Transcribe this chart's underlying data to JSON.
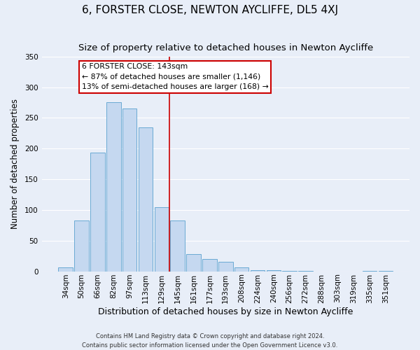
{
  "title": "6, FORSTER CLOSE, NEWTON AYCLIFFE, DL5 4XJ",
  "subtitle": "Size of property relative to detached houses in Newton Aycliffe",
  "xlabel": "Distribution of detached houses by size in Newton Aycliffe",
  "ylabel": "Number of detached properties",
  "bar_labels": [
    "34sqm",
    "50sqm",
    "66sqm",
    "82sqm",
    "97sqm",
    "113sqm",
    "129sqm",
    "145sqm",
    "161sqm",
    "177sqm",
    "193sqm",
    "208sqm",
    "224sqm",
    "240sqm",
    "256sqm",
    "272sqm",
    "288sqm",
    "303sqm",
    "319sqm",
    "335sqm",
    "351sqm"
  ],
  "bar_values": [
    6,
    83,
    194,
    276,
    265,
    235,
    105,
    83,
    28,
    20,
    16,
    6,
    2,
    2,
    1,
    1,
    0,
    0,
    0,
    1,
    1
  ],
  "bar_color": "#c5d8f0",
  "bar_edge_color": "#6aaad4",
  "vline_color": "#cc0000",
  "annotation_title": "6 FORSTER CLOSE: 143sqm",
  "annotation_line1": "← 87% of detached houses are smaller (1,146)",
  "annotation_line2": "13% of semi-detached houses are larger (168) →",
  "annotation_box_color": "#ffffff",
  "annotation_box_edge": "#cc0000",
  "ylim": [
    0,
    350
  ],
  "yticks": [
    0,
    50,
    100,
    150,
    200,
    250,
    300,
    350
  ],
  "footer1": "Contains HM Land Registry data © Crown copyright and database right 2024.",
  "footer2": "Contains public sector information licensed under the Open Government Licence v3.0.",
  "bg_color": "#e8eef8",
  "grid_color": "#ffffff",
  "title_fontsize": 11,
  "subtitle_fontsize": 9.5,
  "xlabel_fontsize": 9,
  "ylabel_fontsize": 8.5,
  "tick_fontsize": 7.5,
  "annot_fontsize": 7.8,
  "footer_fontsize": 6.0
}
